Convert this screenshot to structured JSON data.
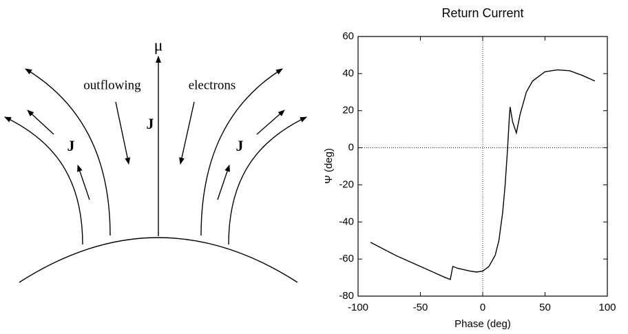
{
  "diagram": {
    "axis_label": "μ",
    "left_label": "outflowing",
    "right_label": "electrons",
    "current_labels": [
      "J",
      "J",
      "J"
    ]
  },
  "chart_data": {
    "type": "line",
    "title": "Return Current",
    "xlabel": "Phase (deg)",
    "ylabel": "Ψ (deg)",
    "xlim": [
      -100,
      100
    ],
    "xticks": [
      -100,
      -50,
      0,
      50,
      100
    ],
    "ylim": [
      -80,
      60
    ],
    "yticks": [
      -80,
      -60,
      -40,
      -20,
      0,
      20,
      40,
      60
    ],
    "zero_lines": true,
    "series": [
      {
        "color": "#000000",
        "x": [
          -90,
          -70,
          -50,
          -30,
          -26,
          -24,
          -20,
          -10,
          -5,
          0,
          5,
          10,
          13,
          16,
          18,
          20,
          21.5,
          22,
          24,
          27,
          30,
          35,
          40,
          50,
          60,
          70,
          80,
          90
        ],
        "values": [
          -51,
          -58,
          -64,
          -70,
          -71,
          -64,
          -65,
          -66.5,
          -67,
          -66.5,
          -64,
          -58,
          -50,
          -35,
          -20,
          0,
          18,
          22,
          14,
          8,
          18,
          30,
          36,
          41,
          42,
          41.5,
          39,
          36
        ]
      }
    ]
  }
}
